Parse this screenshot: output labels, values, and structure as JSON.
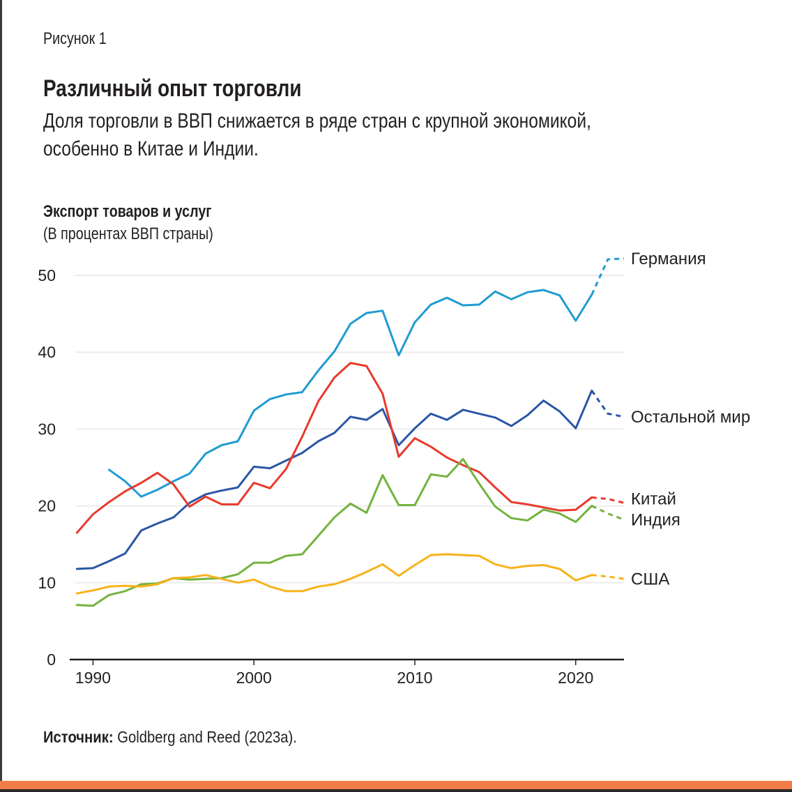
{
  "figure_label": "Рисунок 1",
  "title": "Различный опыт торговли",
  "subtitle_line1": "Доля торговли в ВВП снижается в ряде стран с крупной экономикой,",
  "subtitle_line2": "особенно в Китае и Индии.",
  "source_label": "Источник:",
  "source_text": " Goldberg and Reed (2023a).",
  "colors": {
    "germany": "#1f9bd1",
    "rest_of_world": "#2a56a5",
    "china": "#e8392b",
    "india": "#72b33e",
    "usa": "#f7b21b",
    "accent_bar": "#f07c4a"
  },
  "chart_data": {
    "type": "line",
    "title": "Экспорт товаров и услуг",
    "ylabel": "(В процентах ВВП страны)",
    "xlabel": "",
    "xlim": [
      1988.9,
      2023
    ],
    "ylim": [
      0,
      50
    ],
    "xticks": [
      1990,
      2000,
      2010,
      2020
    ],
    "yticks": [
      0,
      10,
      20,
      30,
      40,
      50
    ],
    "grid": true,
    "legend": "inline-right",
    "series": [
      {
        "name": "Германия",
        "key": "germany",
        "x": [
          1991,
          1992,
          1993,
          1994,
          1995,
          1996,
          1997,
          1998,
          1999,
          2000,
          2001,
          2002,
          2003,
          2004,
          2005,
          2006,
          2007,
          2008,
          2009,
          2010,
          2011,
          2012,
          2013,
          2014,
          2015,
          2016,
          2017,
          2018,
          2019,
          2020,
          2021
        ],
        "values": [
          24.7,
          23.2,
          21.2,
          22.1,
          23.2,
          24.2,
          26.8,
          27.9,
          28.4,
          32.4,
          33.9,
          34.5,
          34.8,
          37.6,
          40.1,
          43.7,
          45.1,
          45.4,
          39.6,
          43.9,
          46.2,
          47.1,
          46.1,
          46.2,
          47.9,
          46.9,
          47.8,
          48.1,
          47.4,
          44.1,
          47.5
        ],
        "projection_x": [
          2021,
          2022,
          2023
        ],
        "projection_values": [
          47.5,
          52.1,
          52.2
        ]
      },
      {
        "name": "Остальной мир",
        "key": "rest_of_world",
        "x": [
          1989,
          1990,
          1991,
          1992,
          1993,
          1994,
          1995,
          1996,
          1997,
          1998,
          1999,
          2000,
          2001,
          2002,
          2003,
          2004,
          2005,
          2006,
          2007,
          2008,
          2009,
          2010,
          2011,
          2012,
          2013,
          2014,
          2015,
          2016,
          2017,
          2018,
          2019,
          2020,
          2021
        ],
        "values": [
          11.8,
          11.9,
          12.8,
          13.8,
          16.8,
          17.7,
          18.5,
          20.4,
          21.5,
          22.0,
          22.4,
          25.1,
          24.9,
          25.9,
          26.9,
          28.4,
          29.5,
          31.6,
          31.2,
          32.6,
          27.9,
          30.1,
          32.0,
          31.2,
          32.5,
          32.0,
          31.5,
          30.4,
          31.8,
          33.7,
          32.3,
          30.1,
          35.0
        ],
        "projection_x": [
          2021,
          2022,
          2023
        ],
        "projection_values": [
          35.0,
          32.0,
          31.6
        ]
      },
      {
        "name": "Китай",
        "key": "china",
        "x": [
          1989,
          1990,
          1991,
          1992,
          1993,
          1994,
          1995,
          1996,
          1997,
          1998,
          1999,
          2000,
          2001,
          2002,
          2003,
          2004,
          2005,
          2006,
          2007,
          2008,
          2009,
          2010,
          2011,
          2012,
          2013,
          2014,
          2015,
          2016,
          2017,
          2018,
          2019,
          2020,
          2021
        ],
        "values": [
          16.5,
          18.9,
          20.5,
          21.9,
          23.0,
          24.3,
          22.8,
          19.9,
          21.2,
          20.2,
          20.2,
          23.0,
          22.3,
          24.8,
          29.0,
          33.6,
          36.7,
          38.6,
          38.2,
          34.6,
          26.4,
          28.8,
          27.7,
          26.3,
          25.3,
          24.4,
          22.4,
          20.5,
          20.2,
          19.8,
          19.4,
          19.5,
          21.1
        ],
        "projection_x": [
          2021,
          2022,
          2023
        ],
        "projection_values": [
          21.1,
          20.9,
          20.4
        ]
      },
      {
        "name": "Индия",
        "key": "india",
        "x": [
          1989,
          1990,
          1991,
          1992,
          1993,
          1994,
          1995,
          1996,
          1997,
          1998,
          1999,
          2000,
          2001,
          2002,
          2003,
          2004,
          2005,
          2006,
          2007,
          2008,
          2009,
          2010,
          2011,
          2012,
          2013,
          2014,
          2015,
          2016,
          2017,
          2018,
          2019,
          2020,
          2021
        ],
        "values": [
          7.1,
          7.0,
          8.4,
          8.9,
          9.8,
          9.9,
          10.6,
          10.4,
          10.5,
          10.6,
          11.1,
          12.6,
          12.6,
          13.5,
          13.7,
          16.1,
          18.5,
          20.3,
          19.1,
          24.0,
          20.1,
          20.1,
          24.1,
          23.8,
          26.1,
          22.9,
          19.9,
          18.4,
          18.1,
          19.5,
          19.0,
          17.9,
          20.0
        ],
        "projection_x": [
          2021,
          2022,
          2023
        ],
        "projection_values": [
          20.0,
          19.0,
          18.2
        ]
      },
      {
        "name": "США",
        "key": "usa",
        "x": [
          1989,
          1990,
          1991,
          1992,
          1993,
          1994,
          1995,
          1996,
          1997,
          1998,
          1999,
          2000,
          2001,
          2002,
          2003,
          2004,
          2005,
          2006,
          2007,
          2008,
          2009,
          2010,
          2011,
          2012,
          2013,
          2014,
          2015,
          2016,
          2017,
          2018,
          2019,
          2020,
          2021
        ],
        "values": [
          8.6,
          9.0,
          9.5,
          9.6,
          9.5,
          9.8,
          10.6,
          10.7,
          11.0,
          10.5,
          10.0,
          10.4,
          9.5,
          8.9,
          8.9,
          9.5,
          9.8,
          10.5,
          11.4,
          12.4,
          10.9,
          12.3,
          13.6,
          13.7,
          13.6,
          13.5,
          12.4,
          11.9,
          12.2,
          12.3,
          11.8,
          10.3,
          11.0
        ],
        "projection_x": [
          2021,
          2022,
          2023
        ],
        "projection_values": [
          11.0,
          10.8,
          10.5
        ]
      }
    ]
  }
}
